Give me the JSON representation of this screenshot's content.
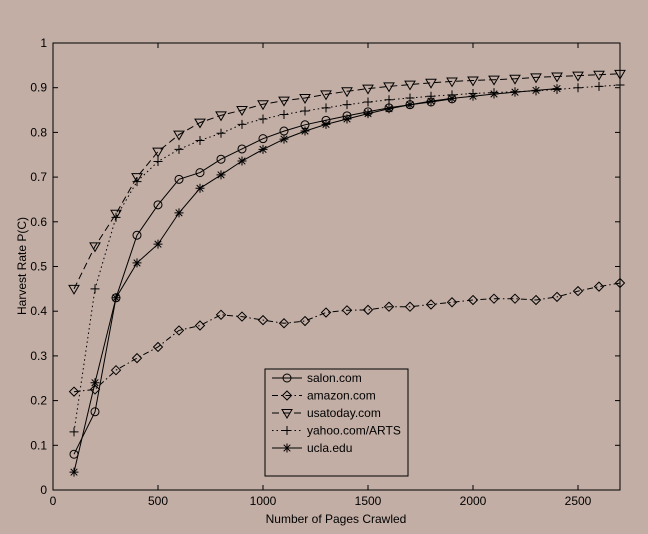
{
  "chart_data": {
    "type": "line",
    "xlabel": "Number of Pages Crawled",
    "ylabel": "Harvest Rate P(C)",
    "xlim": [
      0,
      2700
    ],
    "ylim": [
      0,
      1
    ],
    "xticks": [
      0,
      500,
      1000,
      1500,
      2000,
      2500
    ],
    "yticks": [
      0,
      0.1,
      0.2,
      0.3,
      0.4,
      0.5,
      0.6,
      0.7,
      0.8,
      0.9,
      1
    ],
    "ytick_labels": [
      "0",
      "0.1",
      "0.2",
      "0.3",
      "0.4",
      "0.5",
      "0.6",
      "0.7",
      "0.8",
      "0.9",
      "1"
    ],
    "grid": false,
    "legend_position": "center-bottom",
    "series": [
      {
        "name": "salon.com",
        "marker": "circle",
        "line_style": "solid",
        "x": [
          100,
          200,
          300,
          400,
          500,
          600,
          700,
          800,
          900,
          1000,
          1100,
          1200,
          1300,
          1400,
          1500,
          1600,
          1700,
          1800,
          1900
        ],
        "values": [
          0.08,
          0.175,
          0.43,
          0.57,
          0.638,
          0.695,
          0.71,
          0.74,
          0.763,
          0.786,
          0.803,
          0.817,
          0.827,
          0.837,
          0.846,
          0.855,
          0.862,
          0.868,
          0.875
        ]
      },
      {
        "name": "amazon.com",
        "marker": "diamond",
        "line_style": "dashdot",
        "x": [
          100,
          200,
          300,
          400,
          500,
          600,
          700,
          800,
          900,
          1000,
          1100,
          1200,
          1300,
          1400,
          1500,
          1600,
          1700,
          1800,
          1900,
          2000,
          2100,
          2200,
          2300,
          2400,
          2500,
          2600,
          2700
        ],
        "values": [
          0.22,
          0.225,
          0.268,
          0.295,
          0.32,
          0.357,
          0.368,
          0.392,
          0.388,
          0.38,
          0.373,
          0.378,
          0.397,
          0.402,
          0.403,
          0.41,
          0.41,
          0.415,
          0.42,
          0.425,
          0.428,
          0.428,
          0.425,
          0.432,
          0.445,
          0.455,
          0.463
        ]
      },
      {
        "name": "usatoday.com",
        "marker": "triangle-down",
        "line_style": "dashed",
        "x": [
          100,
          200,
          300,
          400,
          500,
          600,
          700,
          800,
          900,
          1000,
          1100,
          1200,
          1300,
          1400,
          1500,
          1600,
          1700,
          1800,
          1900,
          2000,
          2100,
          2200,
          2300,
          2400,
          2500,
          2600,
          2700
        ],
        "values": [
          0.45,
          0.545,
          0.618,
          0.7,
          0.757,
          0.795,
          0.822,
          0.838,
          0.85,
          0.863,
          0.871,
          0.877,
          0.885,
          0.892,
          0.898,
          0.903,
          0.907,
          0.911,
          0.914,
          0.916,
          0.918,
          0.92,
          0.923,
          0.925,
          0.927,
          0.929,
          0.931
        ]
      },
      {
        "name": "yahoo.com/ARTS",
        "marker": "plus",
        "line_style": "dotted",
        "x": [
          100,
          200,
          300,
          400,
          500,
          600,
          700,
          800,
          900,
          1000,
          1100,
          1200,
          1300,
          1400,
          1500,
          1600,
          1700,
          1800,
          1900,
          2000,
          2100,
          2200,
          2300,
          2400,
          2500,
          2600,
          2700
        ],
        "values": [
          0.13,
          0.45,
          0.61,
          0.69,
          0.735,
          0.762,
          0.782,
          0.798,
          0.818,
          0.83,
          0.84,
          0.848,
          0.855,
          0.862,
          0.868,
          0.873,
          0.877,
          0.881,
          0.884,
          0.887,
          0.889,
          0.891,
          0.893,
          0.896,
          0.9,
          0.903,
          0.906
        ]
      },
      {
        "name": "ucla.edu",
        "marker": "asterisk",
        "line_style": "solid",
        "x": [
          100,
          200,
          300,
          400,
          500,
          600,
          700,
          800,
          900,
          1000,
          1100,
          1200,
          1300,
          1400,
          1500,
          1600,
          1700,
          1800,
          1900,
          2000,
          2100,
          2200,
          2300,
          2400
        ],
        "values": [
          0.04,
          0.24,
          0.43,
          0.508,
          0.55,
          0.62,
          0.675,
          0.705,
          0.736,
          0.762,
          0.785,
          0.803,
          0.818,
          0.83,
          0.842,
          0.853,
          0.862,
          0.87,
          0.876,
          0.881,
          0.886,
          0.89,
          0.894,
          0.898
        ]
      }
    ]
  }
}
